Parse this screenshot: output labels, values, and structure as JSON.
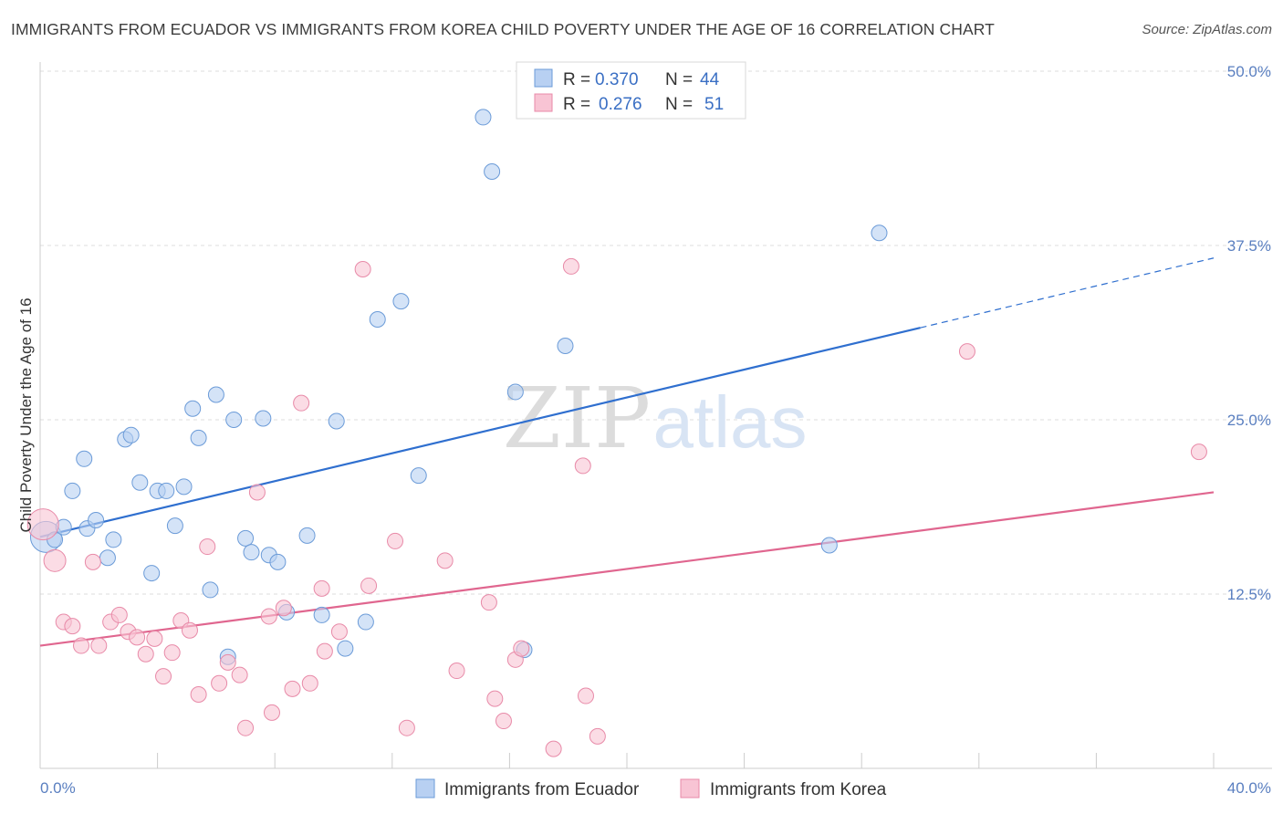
{
  "title": "IMMIGRANTS FROM ECUADOR VS IMMIGRANTS FROM KOREA CHILD POVERTY UNDER THE AGE OF 16 CORRELATION CHART",
  "source": "Source: ZipAtlas.com",
  "watermark": {
    "zip": "ZIP",
    "atlas": "atlas"
  },
  "colors": {
    "ecuador_fill": "#b8d0f2",
    "ecuador_stroke": "#6b9bd8",
    "ecuador_line": "#2f6fcf",
    "korea_fill": "#f8c4d4",
    "korea_stroke": "#e88aa8",
    "korea_line": "#e0668f",
    "grid": "#dddddd",
    "tick_label": "#5a7fc0"
  },
  "legend": {
    "ecuador": {
      "r_label": "R =",
      "r_value": "0.370",
      "n_label": "N =",
      "n_value": "44"
    },
    "korea": {
      "r_label": "R =",
      "r_value": "0.276",
      "n_label": "N =",
      "n_value": "51"
    }
  },
  "chart_data": {
    "type": "scatter",
    "ylabel": "Child Poverty Under the Age of 16",
    "xlim": [
      0,
      40
    ],
    "ylim": [
      0,
      50
    ],
    "y_ticks": [
      {
        "value": 12.5,
        "label": "12.5%"
      },
      {
        "value": 25.0,
        "label": "25.0%"
      },
      {
        "value": 37.5,
        "label": "37.5%"
      },
      {
        "value": 50.0,
        "label": "50.0%"
      }
    ],
    "x_tick_labels": {
      "min": "0.0%",
      "max": "40.0%"
    },
    "x_minor_ticks": [
      0,
      4,
      8,
      12,
      16,
      20,
      24,
      28,
      32,
      36,
      40
    ],
    "grid": true,
    "legend_position": "top-center",
    "series": [
      {
        "name": "Immigrants from Ecuador",
        "key": "ecuador",
        "points": [
          [
            0.2,
            16.6
          ],
          [
            0.5,
            16.4
          ],
          [
            0.8,
            17.3
          ],
          [
            1.5,
            22.2
          ],
          [
            1.1,
            19.9
          ],
          [
            1.6,
            17.2
          ],
          [
            1.9,
            17.8
          ],
          [
            2.3,
            15.1
          ],
          [
            2.5,
            16.4
          ],
          [
            2.9,
            23.6
          ],
          [
            3.1,
            23.9
          ],
          [
            3.4,
            20.5
          ],
          [
            3.8,
            14.0
          ],
          [
            4.0,
            19.9
          ],
          [
            4.3,
            19.9
          ],
          [
            4.6,
            17.4
          ],
          [
            4.9,
            20.2
          ],
          [
            5.2,
            25.8
          ],
          [
            5.4,
            23.7
          ],
          [
            5.8,
            12.8
          ],
          [
            6.0,
            26.8
          ],
          [
            6.6,
            25.0
          ],
          [
            7.0,
            16.5
          ],
          [
            7.2,
            15.5
          ],
          [
            7.6,
            25.1
          ],
          [
            7.8,
            15.3
          ],
          [
            8.1,
            14.8
          ],
          [
            8.4,
            11.2
          ],
          [
            9.1,
            16.7
          ],
          [
            9.6,
            11.0
          ],
          [
            10.1,
            24.9
          ],
          [
            10.4,
            8.6
          ],
          [
            11.1,
            10.5
          ],
          [
            11.5,
            32.2
          ],
          [
            12.3,
            33.5
          ],
          [
            12.9,
            21.0
          ],
          [
            15.1,
            46.7
          ],
          [
            15.4,
            42.8
          ],
          [
            16.2,
            27.0
          ],
          [
            16.5,
            8.5
          ],
          [
            17.9,
            30.3
          ],
          [
            6.4,
            8.0
          ],
          [
            26.9,
            16.0
          ],
          [
            28.6,
            38.4
          ]
        ],
        "trend": {
          "x0": 0,
          "y0": 16.6,
          "x1": 30.0,
          "y1": 31.6,
          "x_dash_end": 40.0,
          "y_dash_end": 36.6
        }
      },
      {
        "name": "Immigrants from Korea",
        "key": "korea",
        "points": [
          [
            0.1,
            17.5
          ],
          [
            0.5,
            14.9
          ],
          [
            0.8,
            10.5
          ],
          [
            1.1,
            10.2
          ],
          [
            1.4,
            8.8
          ],
          [
            1.8,
            14.8
          ],
          [
            2.0,
            8.8
          ],
          [
            2.4,
            10.5
          ],
          [
            2.7,
            11.0
          ],
          [
            3.0,
            9.8
          ],
          [
            3.3,
            9.4
          ],
          [
            3.6,
            8.2
          ],
          [
            3.9,
            9.3
          ],
          [
            4.2,
            6.6
          ],
          [
            4.5,
            8.3
          ],
          [
            4.8,
            10.6
          ],
          [
            5.1,
            9.9
          ],
          [
            5.4,
            5.3
          ],
          [
            5.7,
            15.9
          ],
          [
            6.1,
            6.1
          ],
          [
            6.4,
            7.6
          ],
          [
            6.8,
            6.7
          ],
          [
            7.0,
            2.9
          ],
          [
            7.4,
            19.8
          ],
          [
            7.8,
            10.9
          ],
          [
            7.9,
            4.0
          ],
          [
            8.3,
            11.5
          ],
          [
            8.6,
            5.7
          ],
          [
            8.9,
            26.2
          ],
          [
            9.2,
            6.1
          ],
          [
            9.6,
            12.9
          ],
          [
            9.7,
            8.4
          ],
          [
            10.2,
            9.8
          ],
          [
            11.0,
            35.8
          ],
          [
            11.2,
            13.1
          ],
          [
            12.1,
            16.3
          ],
          [
            12.5,
            2.9
          ],
          [
            13.8,
            14.9
          ],
          [
            14.2,
            7.0
          ],
          [
            15.3,
            11.9
          ],
          [
            15.5,
            5.0
          ],
          [
            15.8,
            3.4
          ],
          [
            16.2,
            7.8
          ],
          [
            16.4,
            8.6
          ],
          [
            17.5,
            1.4
          ],
          [
            18.1,
            36.0
          ],
          [
            18.5,
            21.7
          ],
          [
            18.6,
            5.2
          ],
          [
            19.0,
            2.3
          ],
          [
            31.6,
            29.9
          ],
          [
            39.5,
            22.7
          ]
        ],
        "trend": {
          "x0": 0,
          "y0": 8.8,
          "x1": 40.0,
          "y1": 19.8
        }
      }
    ]
  },
  "bottom_legend": {
    "ecuador": "Immigrants from Ecuador",
    "korea": "Immigrants from Korea"
  }
}
